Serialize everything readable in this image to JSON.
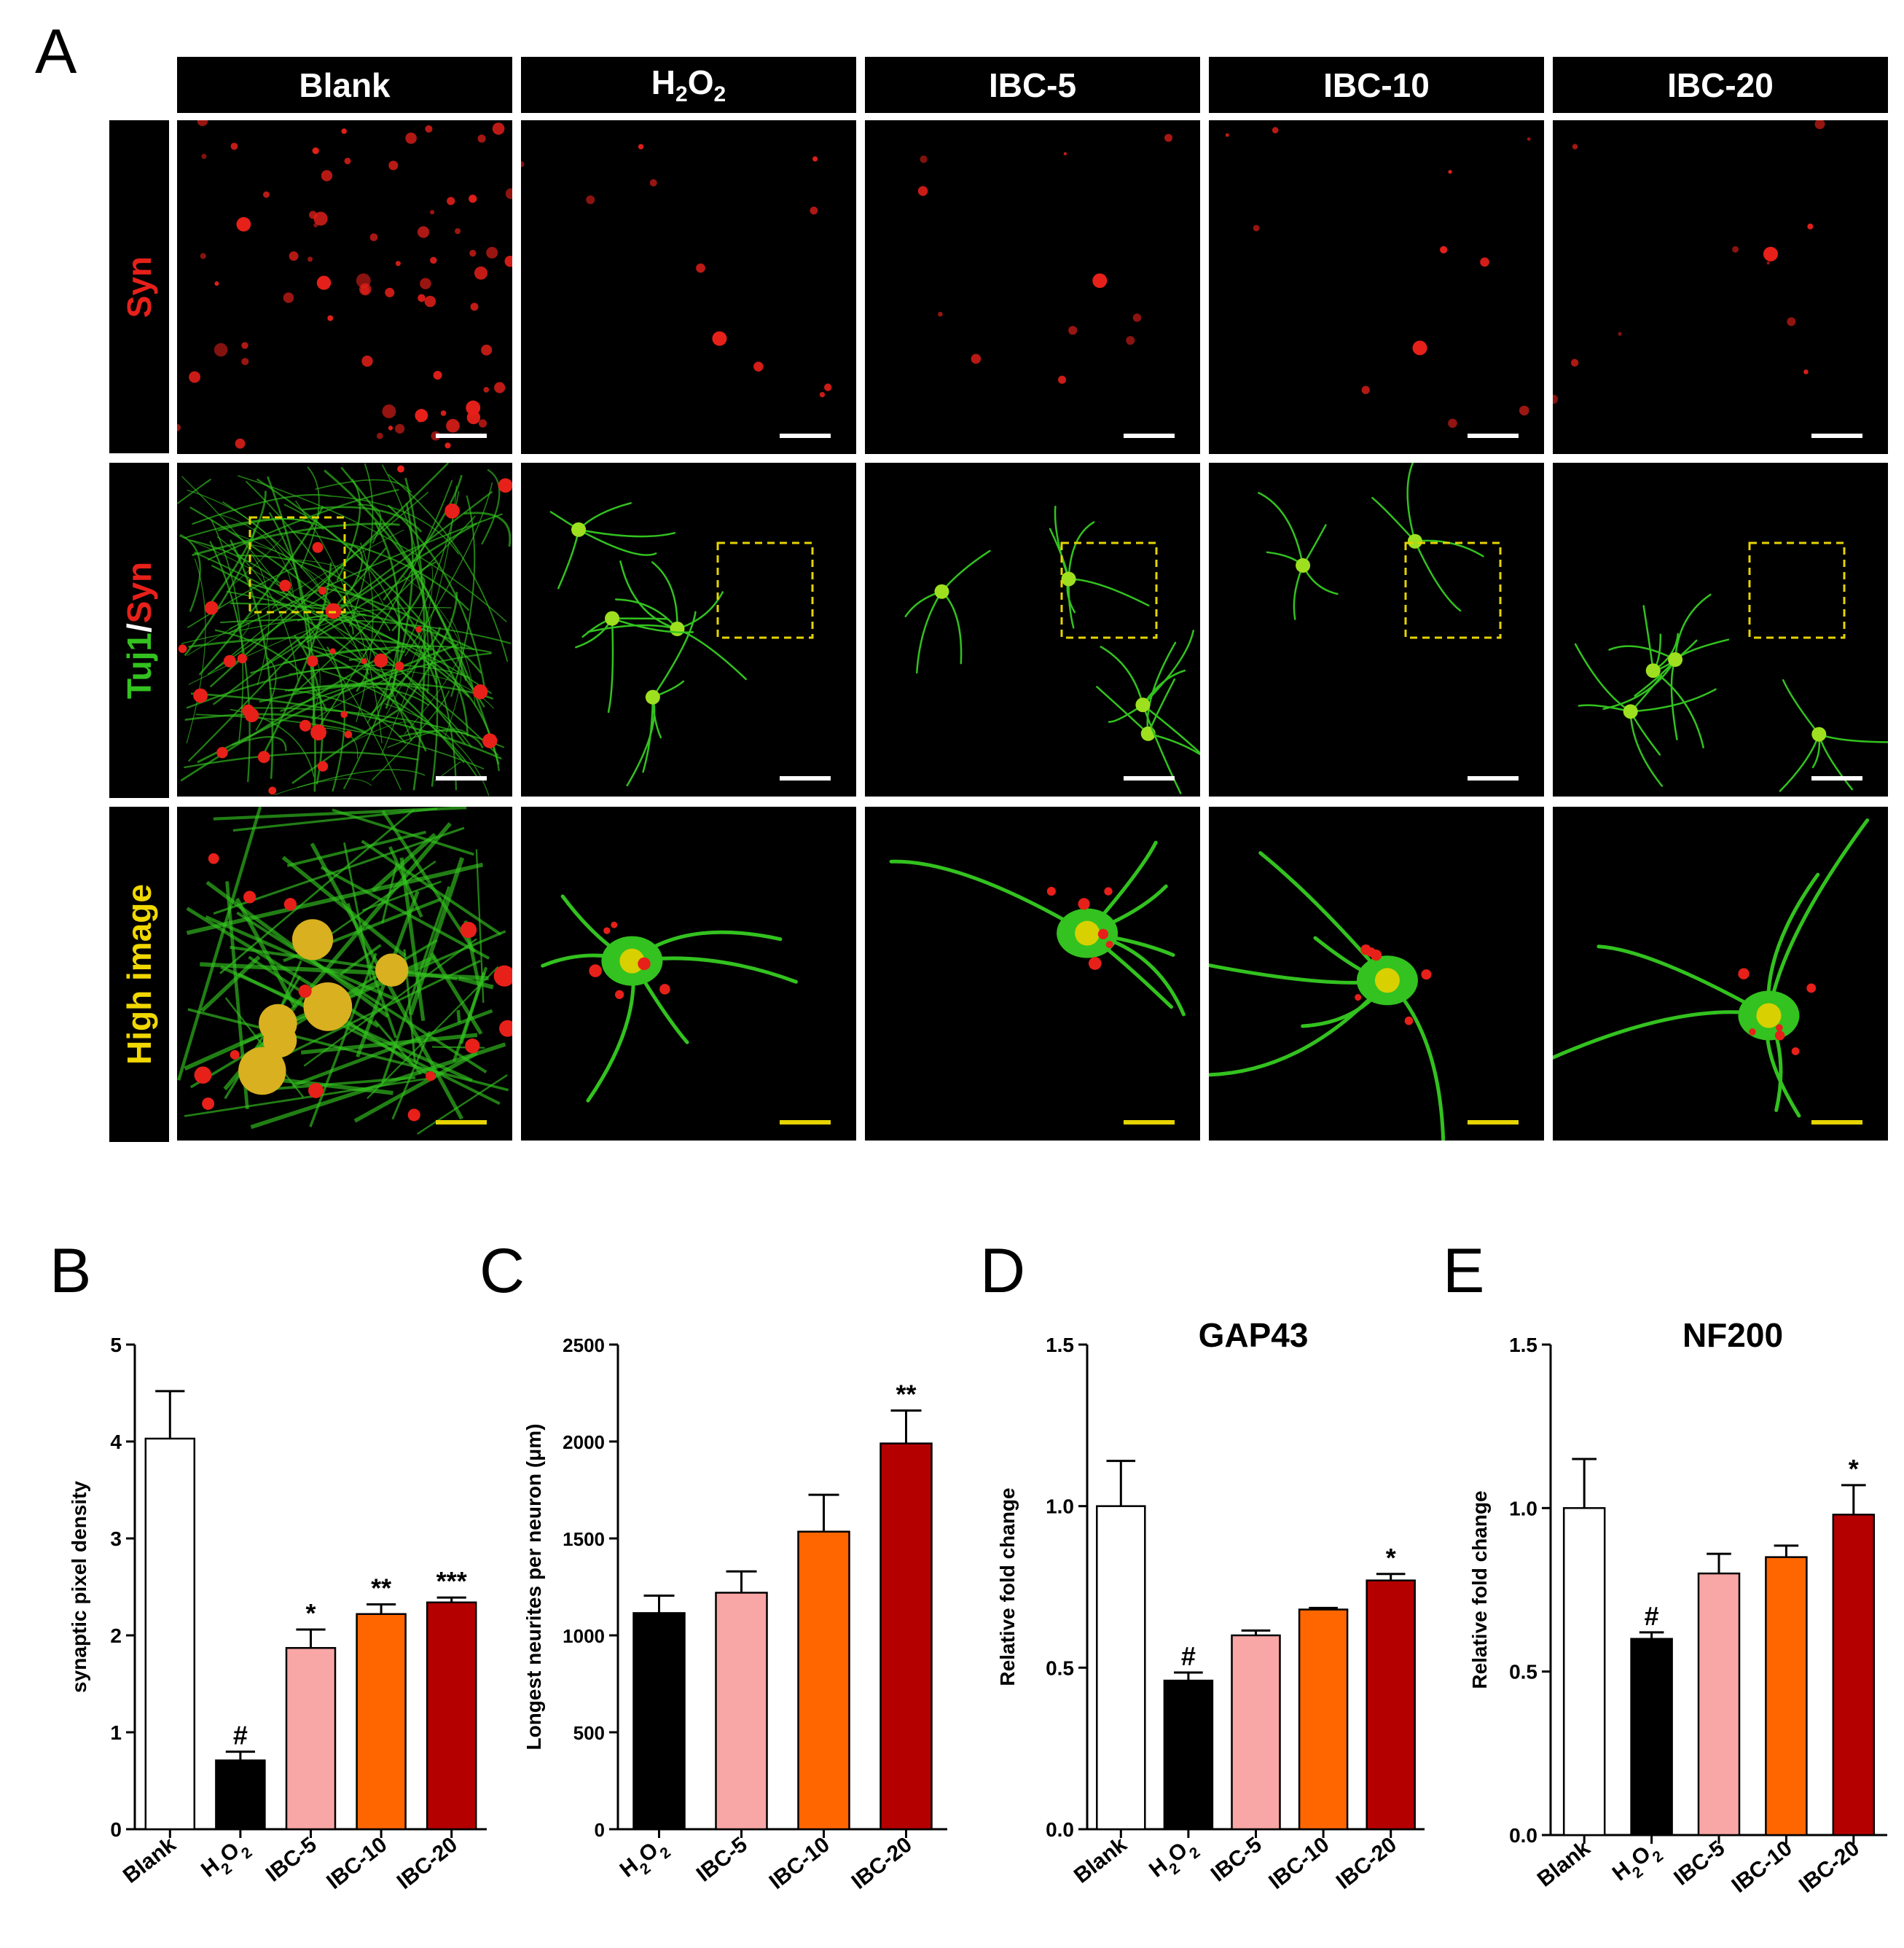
{
  "panels": {
    "A": "A",
    "B": "B",
    "C": "C",
    "D": "D",
    "E": "E"
  },
  "image_grid": {
    "columns": [
      "Blank",
      "H",
      "IBC-5",
      "IBC-10",
      "IBC-20"
    ],
    "h2o2": {
      "h": "H",
      "sub1": "2",
      "o": "O",
      "sub2": "2"
    },
    "rows": [
      {
        "key": "syn",
        "label": "Syn",
        "color": "#e8201a"
      },
      {
        "key": "merge",
        "label_green": "Tuj1",
        "slash": "/",
        "label_red": "Syn",
        "green": "#33c21f",
        "red": "#e8201a"
      },
      {
        "key": "high",
        "label": "High image",
        "color": "#f0d800"
      }
    ],
    "scale_bar_colors": {
      "standard": "#ffffff",
      "high": "#e6d400"
    }
  },
  "chart_data": [
    {
      "id": "B",
      "type": "bar",
      "categories": [
        "Blank",
        "H2O2",
        "IBC-5",
        "IBC-10",
        "IBC-20"
      ],
      "values": [
        4.03,
        0.71,
        1.87,
        2.22,
        2.34
      ],
      "errors": [
        0.49,
        0.09,
        0.19,
        0.1,
        0.05
      ],
      "annotations": [
        "",
        "#",
        "*",
        "**",
        "***"
      ],
      "colors": [
        "#ffffff",
        "#000000",
        "#f9a6a6",
        "#ff6600",
        "#b50000"
      ],
      "ylabel": "synaptic pixel density",
      "title": "",
      "ylim": [
        0,
        5
      ],
      "yticks": [
        "0",
        "1",
        "2",
        "3",
        "4",
        "5"
      ]
    },
    {
      "id": "C",
      "type": "bar",
      "categories": [
        "H2O2",
        "IBC-5",
        "IBC-10",
        "IBC-20"
      ],
      "values": [
        1115,
        1220,
        1535,
        1990
      ],
      "errors": [
        90,
        110,
        190,
        170
      ],
      "annotations": [
        "",
        "",
        "",
        "**"
      ],
      "colors": [
        "#000000",
        "#f9a6a6",
        "#ff6600",
        "#b50000"
      ],
      "ylabel": "Longest neurites per neuron (μm)",
      "title": "",
      "ylim": [
        0,
        2500
      ],
      "yticks": [
        "0",
        "500",
        "1000",
        "1500",
        "2000",
        "2500"
      ]
    },
    {
      "id": "D",
      "type": "bar",
      "categories": [
        "Blank",
        "H2O2",
        "IBC-5",
        "IBC-10",
        "IBC-20"
      ],
      "values": [
        1.0,
        0.46,
        0.6,
        0.68,
        0.77
      ],
      "errors": [
        0.14,
        0.025,
        0.015,
        0.005,
        0.02
      ],
      "annotations": [
        "",
        "#",
        "",
        "",
        "*"
      ],
      "colors": [
        "#ffffff",
        "#000000",
        "#f9a6a6",
        "#ff6600",
        "#b50000"
      ],
      "ylabel": "Relative fold change",
      "title": "GAP43",
      "ylim": [
        0,
        1.5
      ],
      "yticks": [
        "0.0",
        "0.5",
        "1.0",
        "1.5"
      ]
    },
    {
      "id": "E",
      "type": "bar",
      "categories": [
        "Blank",
        "H2O2",
        "IBC-5",
        "IBC-10",
        "IBC-20"
      ],
      "values": [
        1.0,
        0.6,
        0.8,
        0.85,
        0.98
      ],
      "errors": [
        0.15,
        0.02,
        0.06,
        0.035,
        0.09
      ],
      "annotations": [
        "",
        "#",
        "",
        "",
        "*"
      ],
      "colors": [
        "#ffffff",
        "#000000",
        "#f9a6a6",
        "#ff6600",
        "#b50000"
      ],
      "ylabel": "Relative fold change",
      "title": "NF200",
      "ylim": [
        0,
        1.5
      ],
      "yticks": [
        "0.0",
        "0.5",
        "1.0",
        "1.5"
      ]
    }
  ]
}
